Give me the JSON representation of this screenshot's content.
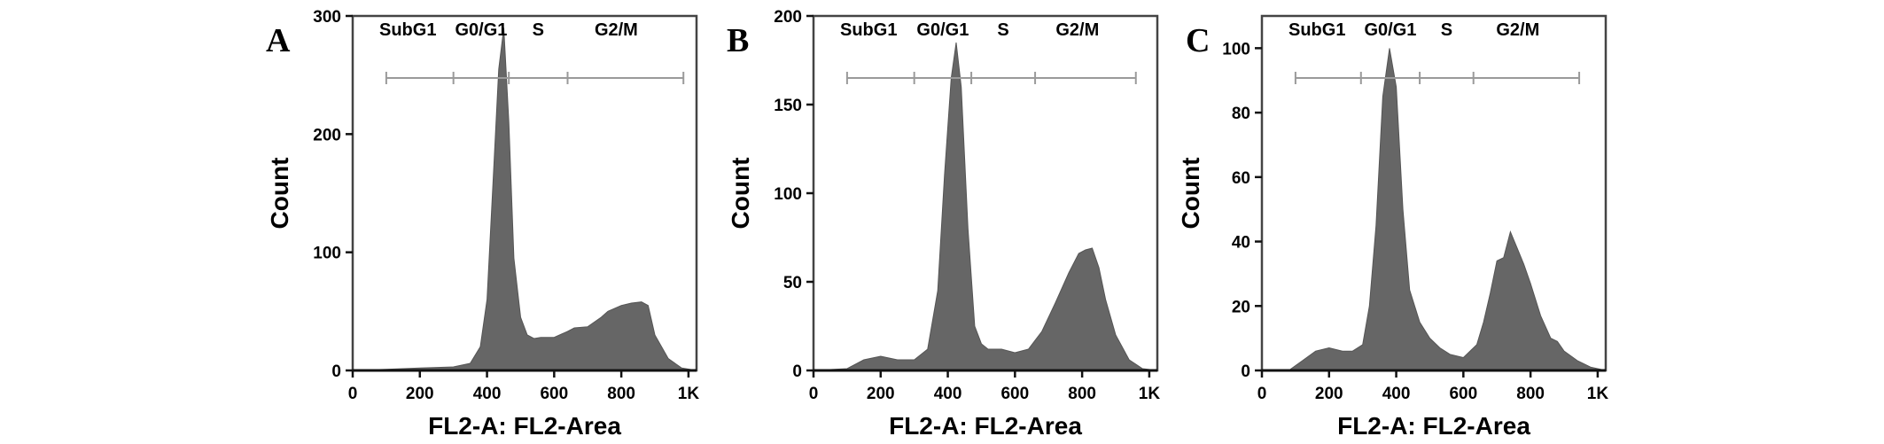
{
  "chart_data": [
    {
      "type": "area",
      "panel_label": "A",
      "xlabel": "FL2-A: FL2-Area",
      "ylabel": "Count",
      "xlim": [
        0,
        1024
      ],
      "ylim": [
        0,
        300
      ],
      "x_ticks": [
        "0",
        "200",
        "400",
        "600",
        "800",
        "1K"
      ],
      "x_tick_values": [
        0,
        200,
        400,
        600,
        800,
        1000
      ],
      "y_ticks": [
        "0",
        "100",
        "200",
        "300"
      ],
      "y_tick_values": [
        0,
        100,
        200,
        300
      ],
      "gates": [
        {
          "label": "SubG1",
          "range": [
            100,
            300
          ]
        },
        {
          "label": "G0/G1",
          "range": [
            300,
            465
          ]
        },
        {
          "label": "S",
          "range": [
            465,
            640
          ]
        },
        {
          "label": "G2/M",
          "range": [
            640,
            985
          ]
        }
      ],
      "fill_color": "#666666",
      "series": [
        {
          "x": [
            0,
            100,
            200,
            300,
            350,
            380,
            400,
            420,
            435,
            450,
            465,
            480,
            500,
            520,
            540,
            560,
            600,
            640,
            660,
            700,
            740,
            760,
            800,
            830,
            860,
            880,
            900,
            940,
            980,
            1024
          ],
          "y": [
            0,
            1,
            2,
            3,
            6,
            20,
            60,
            170,
            255,
            290,
            210,
            95,
            45,
            30,
            27,
            28,
            28,
            33,
            36,
            37,
            45,
            50,
            55,
            57,
            58,
            55,
            30,
            10,
            2,
            0
          ]
        }
      ]
    },
    {
      "type": "area",
      "panel_label": "B",
      "xlabel": "FL2-A: FL2-Area",
      "ylabel": "Count",
      "xlim": [
        0,
        1024
      ],
      "ylim": [
        0,
        200
      ],
      "x_ticks": [
        "0",
        "200",
        "400",
        "600",
        "800",
        "1K"
      ],
      "x_tick_values": [
        0,
        200,
        400,
        600,
        800,
        1000
      ],
      "y_ticks": [
        "0",
        "50",
        "100",
        "150",
        "200"
      ],
      "y_tick_values": [
        0,
        50,
        100,
        150,
        200
      ],
      "gates": [
        {
          "label": "SubG1",
          "range": [
            100,
            300
          ]
        },
        {
          "label": "G0/G1",
          "range": [
            300,
            470
          ]
        },
        {
          "label": "S",
          "range": [
            470,
            660
          ]
        },
        {
          "label": "G2/M",
          "range": [
            660,
            960
          ]
        }
      ],
      "fill_color": "#666666",
      "series": [
        {
          "x": [
            0,
            100,
            150,
            200,
            250,
            300,
            340,
            370,
            390,
            410,
            425,
            440,
            460,
            480,
            500,
            520,
            560,
            600,
            640,
            680,
            720,
            760,
            790,
            810,
            830,
            850,
            870,
            900,
            940,
            980,
            1024
          ],
          "y": [
            0,
            1,
            6,
            8,
            6,
            6,
            12,
            45,
            110,
            165,
            185,
            160,
            80,
            25,
            15,
            12,
            12,
            10,
            12,
            22,
            38,
            55,
            66,
            68,
            69,
            58,
            40,
            20,
            6,
            1,
            0
          ]
        }
      ]
    },
    {
      "type": "area",
      "panel_label": "C",
      "xlabel": "FL2-A: FL2-Area",
      "ylabel": "Count",
      "xlim": [
        0,
        1024
      ],
      "ylim": [
        0,
        110
      ],
      "x_ticks": [
        "0",
        "200",
        "400",
        "600",
        "800",
        "1K"
      ],
      "x_tick_values": [
        0,
        200,
        400,
        600,
        800,
        1000
      ],
      "y_ticks": [
        "0",
        "20",
        "40",
        "60",
        "80",
        "100"
      ],
      "y_tick_values": [
        0,
        20,
        40,
        60,
        80,
        100
      ],
      "gates": [
        {
          "label": "SubG1",
          "range": [
            100,
            295
          ]
        },
        {
          "label": "G0/G1",
          "range": [
            295,
            470
          ]
        },
        {
          "label": "S",
          "range": [
            470,
            630
          ]
        },
        {
          "label": "G2/M",
          "range": [
            630,
            945
          ]
        }
      ],
      "fill_color": "#666666",
      "series": [
        {
          "x": [
            0,
            80,
            120,
            160,
            200,
            240,
            270,
            300,
            320,
            340,
            360,
            380,
            400,
            420,
            440,
            470,
            500,
            530,
            560,
            600,
            640,
            660,
            680,
            700,
            720,
            740,
            760,
            780,
            800,
            830,
            860,
            880,
            900,
            940,
            980,
            1024
          ],
          "y": [
            0,
            0,
            3,
            6,
            7,
            6,
            6,
            8,
            20,
            45,
            85,
            100,
            88,
            50,
            25,
            15,
            10,
            7,
            5,
            4,
            8,
            15,
            24,
            34,
            35,
            43,
            38,
            33,
            27,
            17,
            10,
            9,
            6,
            3,
            1,
            0
          ]
        }
      ]
    }
  ]
}
